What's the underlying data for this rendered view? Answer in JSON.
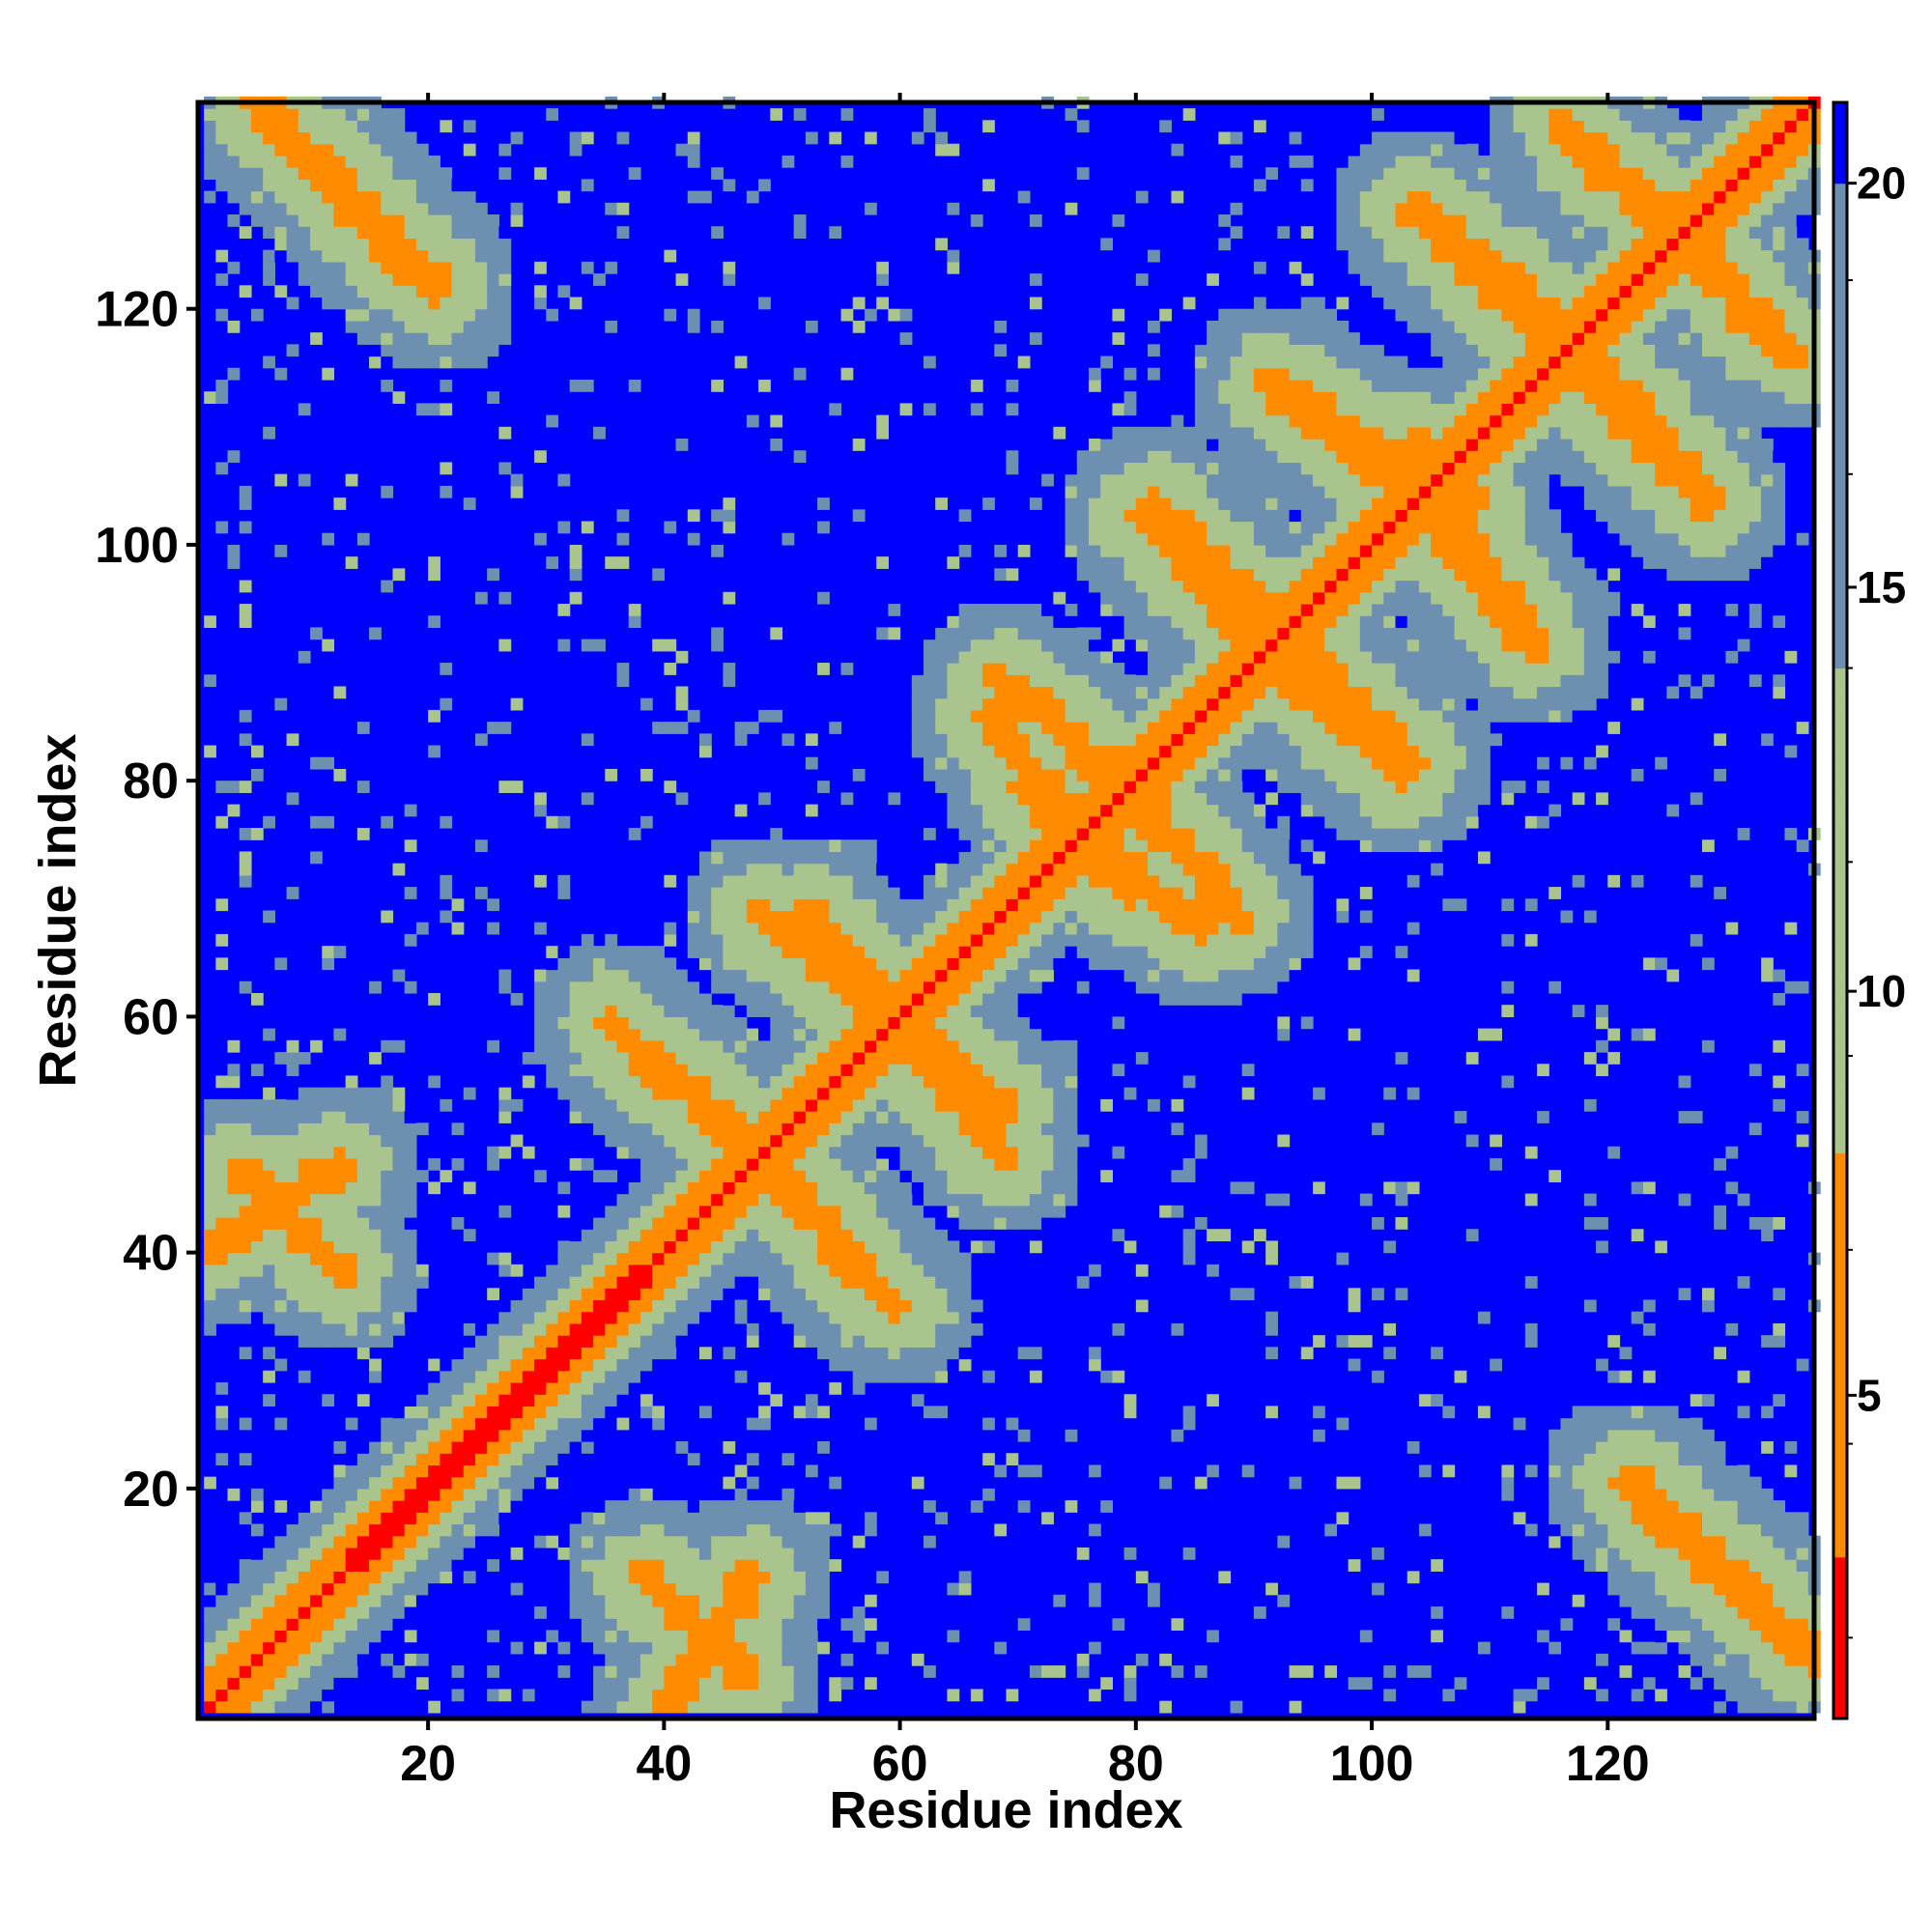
{
  "chart_data": {
    "type": "heatmap",
    "title": "",
    "xlabel": "Residue index",
    "ylabel": "Residue index",
    "n_residues": 137,
    "xlim": [
      1,
      137
    ],
    "ylim": [
      1,
      137
    ],
    "x_ticks": [
      20,
      40,
      60,
      80,
      100,
      120
    ],
    "y_ticks": [
      20,
      40,
      60,
      80,
      100,
      120
    ],
    "colorbar": {
      "ticks": [
        5,
        10,
        15,
        20
      ],
      "range": [
        1,
        21
      ],
      "colors": {
        "close": "#ff0000",
        "near": "#ff8c00",
        "mid": "#a9c48d",
        "far": "#6d8fb0",
        "max": "#0000ff"
      }
    },
    "contacts": {
      "diagonal": "i = j",
      "helix_segments": [
        [
          13,
          38
        ]
      ],
      "antiparallel_pairs": [
        [
          [
            1,
            12
          ],
          [
            40,
            47
          ]
        ],
        [
          [
            4,
            12
          ],
          [
            46,
            38
          ]
        ],
        [
          [
            35,
            47
          ],
          [
            59,
            48
          ]
        ],
        [
          [
            48,
            56
          ],
          [
            48,
            38
          ]
        ],
        [
          [
            52,
            62
          ],
          [
            68,
            55
          ]
        ],
        [
          [
            59,
            68
          ],
          [
            59,
            48
          ]
        ],
        [
          [
            67,
            79
          ],
          [
            85,
            70
          ]
        ],
        [
          [
            79,
            88
          ],
          [
            79,
            68
          ]
        ],
        [
          [
            80,
            96
          ],
          [
            102,
            85
          ]
        ],
        [
          [
            92,
            103
          ],
          [
            92,
            81
          ]
        ],
        [
          [
            91,
            108
          ],
          [
            113,
            103
          ]
        ],
        [
          [
            103,
            113
          ],
          [
            103,
            92
          ]
        ],
        [
          [
            106,
            116
          ],
          [
            126,
            117
          ]
        ],
        [
          [
            117,
            128
          ],
          [
            114,
            103
          ]
        ],
        [
          [
            116,
            125
          ],
          [
            135,
            126
          ]
        ],
        [
          [
            126,
            133
          ],
          [
            126,
            117
          ]
        ],
        [
          [
            6,
            20
          ],
          [
            136,
            121
          ]
        ],
        [
          [
            122,
            137
          ],
          [
            20,
            5
          ]
        ]
      ]
    }
  }
}
